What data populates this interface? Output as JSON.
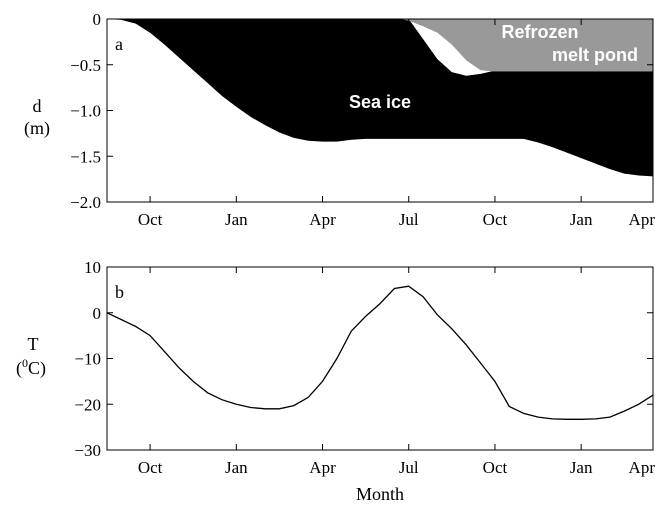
{
  "xlabel": "Month",
  "chart_data": [
    {
      "panel": "a",
      "type": "area",
      "ylabel_line1": "d",
      "ylabel_line2": "(m)",
      "ylim": [
        -2.0,
        0
      ],
      "yticks": [
        0,
        -0.5,
        -1.0,
        -1.5,
        -2.0
      ],
      "ytick_labels": [
        "0",
        "−0.5",
        "−1.0",
        "−1.5",
        "−2.0"
      ],
      "xlim": [
        0,
        19
      ],
      "xticks": [
        1.5,
        4.5,
        7.5,
        10.5,
        13.5,
        16.5,
        19.0
      ],
      "xtick_labels": [
        "Oct",
        "Jan",
        "Apr",
        "Jul",
        "Oct",
        "Jan",
        "Apr"
      ],
      "region_labels": [
        "Sea ice",
        "Refrozen",
        "melt pond"
      ],
      "colors": {
        "sea_ice": "#000000",
        "refrozen_melt_pond": "#999999",
        "background": "#ffffff"
      },
      "ice_bottom": {
        "x": [
          0,
          0.5,
          1.0,
          1.5,
          2.0,
          2.5,
          3.0,
          3.5,
          4.0,
          4.5,
          5.0,
          5.5,
          6.0,
          6.5,
          7.0,
          7.5,
          8.0,
          8.5,
          9.0,
          9.5,
          10.0,
          10.5,
          11.0,
          11.5,
          12.0,
          12.5,
          13.0,
          13.5,
          14.0,
          14.5,
          15.0,
          15.5,
          16.0,
          16.5,
          17.0,
          17.5,
          18.0,
          18.5,
          19.0
        ],
        "y": [
          0,
          -0.01,
          -0.05,
          -0.15,
          -0.28,
          -0.42,
          -0.56,
          -0.7,
          -0.84,
          -0.96,
          -1.07,
          -1.16,
          -1.24,
          -1.3,
          -1.33,
          -1.34,
          -1.34,
          -1.32,
          -1.31,
          -1.31,
          -1.31,
          -1.31,
          -1.31,
          -1.31,
          -1.31,
          -1.31,
          -1.31,
          -1.31,
          -1.31,
          -1.31,
          -1.35,
          -1.4,
          -1.46,
          -1.52,
          -1.58,
          -1.64,
          -1.69,
          -1.71,
          -1.72
        ]
      },
      "ice_top": {
        "x": [
          0,
          10.2,
          10.5,
          11.0,
          11.5,
          12.0,
          12.5,
          13.0,
          13.4,
          19.0
        ],
        "y": [
          0,
          0,
          0,
          -0.22,
          -0.44,
          -0.58,
          -0.62,
          -0.6,
          -0.57,
          -0.57
        ]
      },
      "melt_pond": {
        "x": [
          10.2,
          10.5,
          11.0,
          11.5,
          12.0,
          12.5,
          13.0,
          13.4,
          19.0
        ],
        "y": [
          0,
          -0.02,
          -0.08,
          -0.15,
          -0.28,
          -0.45,
          -0.56,
          -0.57,
          -0.57
        ]
      }
    },
    {
      "panel": "b",
      "type": "line",
      "ylabel_line1": "T",
      "ylabel_line2_prefix": "(",
      "ylabel_line2_sup": "0",
      "ylabel_line2_suffix": "C)",
      "ylim": [
        -30,
        10
      ],
      "yticks": [
        10,
        0,
        -10,
        -20,
        -30
      ],
      "ytick_labels": [
        "10",
        "0",
        "−10",
        "−20",
        "−30"
      ],
      "xlim": [
        0,
        19
      ],
      "xticks": [
        1.5,
        4.5,
        7.5,
        10.5,
        13.5,
        16.5,
        19.0
      ],
      "xtick_labels": [
        "Oct",
        "Jan",
        "Apr",
        "Jul",
        "Oct",
        "Jan",
        "Apr"
      ],
      "series": [
        {
          "x": [
            0,
            0.5,
            1.0,
            1.5,
            2.0,
            2.5,
            3.0,
            3.5,
            4.0,
            4.5,
            5.0,
            5.5,
            6.0,
            6.5,
            7.0,
            7.5,
            8.0,
            8.5,
            9.0,
            9.5,
            10.0,
            10.5,
            11.0,
            11.5,
            12.0,
            12.5,
            13.0,
            13.5,
            14.0,
            14.5,
            15.0,
            15.5,
            16.0,
            16.5,
            17.0,
            17.5,
            18.0,
            18.5,
            19.0
          ],
          "y": [
            0,
            -1.5,
            -3.0,
            -5.0,
            -8.5,
            -12.0,
            -15.0,
            -17.5,
            -19.0,
            -20.0,
            -20.7,
            -21.0,
            -21.0,
            -20.3,
            -18.5,
            -15.0,
            -10.0,
            -4.0,
            -0.8,
            2.0,
            5.3,
            5.8,
            3.5,
            -0.5,
            -3.5,
            -7.0,
            -11.0,
            -15.0,
            -20.5,
            -22.0,
            -22.8,
            -23.2,
            -23.3,
            -23.3,
            -23.2,
            -22.8,
            -21.5,
            -20.0,
            -18.0
          ]
        }
      ]
    }
  ]
}
